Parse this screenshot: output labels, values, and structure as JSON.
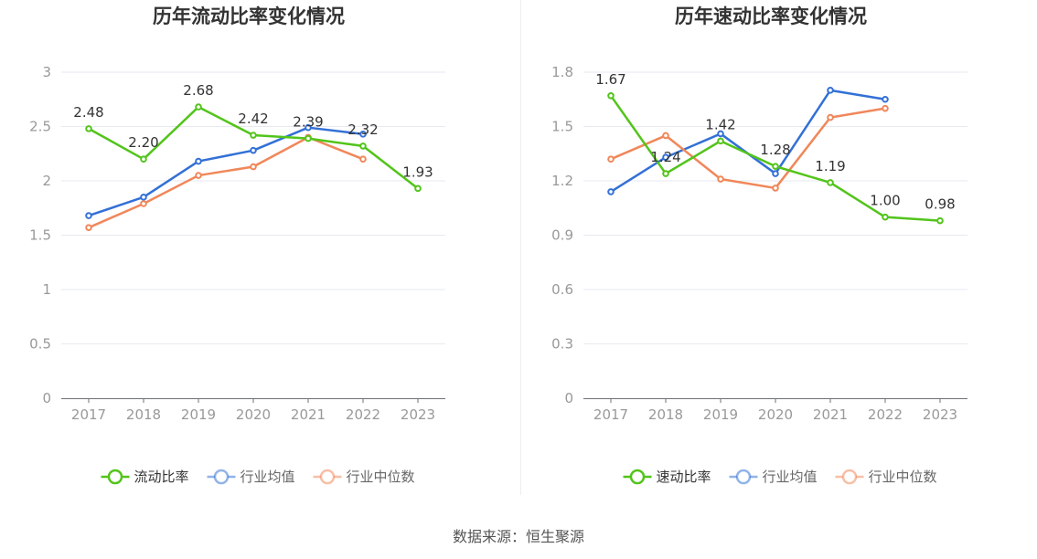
{
  "source_text": "数据来源：恒生聚源",
  "chart_data": [
    {
      "type": "line",
      "title": "历年流动比率变化情况",
      "categories": [
        "2017",
        "2018",
        "2019",
        "2020",
        "2021",
        "2022",
        "2023"
      ],
      "ylim": [
        0,
        3
      ],
      "yticks": [
        0,
        0.5,
        1,
        1.5,
        2,
        2.5,
        3
      ],
      "ytick_labels": [
        "0",
        "0.5",
        "1",
        "1.5",
        "2",
        "2.5",
        "3"
      ],
      "grid": true,
      "legend_position": "bottom",
      "series": [
        {
          "name": "流动比率",
          "color": "#52c41a",
          "labeled": true,
          "values": [
            2.48,
            2.2,
            2.68,
            2.42,
            2.39,
            2.32,
            1.93
          ],
          "labels": [
            "2.48",
            "2.20",
            "2.68",
            "2.42",
            "2.39",
            "2.32",
            "1.93"
          ]
        },
        {
          "name": "行业均值",
          "color": "#3370d6",
          "labeled": false,
          "values": [
            1.68,
            1.85,
            2.18,
            2.28,
            2.49,
            2.43,
            null
          ]
        },
        {
          "name": "行业中位数",
          "color": "#f0875a",
          "labeled": false,
          "values": [
            1.57,
            1.79,
            2.05,
            2.13,
            2.4,
            2.2,
            null
          ]
        }
      ]
    },
    {
      "type": "line",
      "title": "历年速动比率变化情况",
      "categories": [
        "2017",
        "2018",
        "2019",
        "2020",
        "2021",
        "2022",
        "2023"
      ],
      "ylim": [
        0,
        1.8
      ],
      "yticks": [
        0,
        0.3,
        0.6,
        0.9,
        1.2,
        1.5,
        1.8
      ],
      "ytick_labels": [
        "0",
        "0.3",
        "0.6",
        "0.9",
        "1.2",
        "1.5",
        "1.8"
      ],
      "grid": true,
      "legend_position": "bottom",
      "series": [
        {
          "name": "速动比率",
          "color": "#52c41a",
          "labeled": true,
          "values": [
            1.67,
            1.24,
            1.42,
            1.28,
            1.19,
            1.0,
            0.98
          ],
          "labels": [
            "1.67",
            "1.24",
            "1.42",
            "1.28",
            "1.19",
            "1.00",
            "0.98"
          ]
        },
        {
          "name": "行业均值",
          "color": "#3370d6",
          "labeled": false,
          "values": [
            1.14,
            1.33,
            1.46,
            1.24,
            1.7,
            1.65,
            null
          ]
        },
        {
          "name": "行业中位数",
          "color": "#f0875a",
          "labeled": false,
          "values": [
            1.32,
            1.45,
            1.21,
            1.16,
            1.55,
            1.6,
            null
          ]
        }
      ]
    }
  ]
}
